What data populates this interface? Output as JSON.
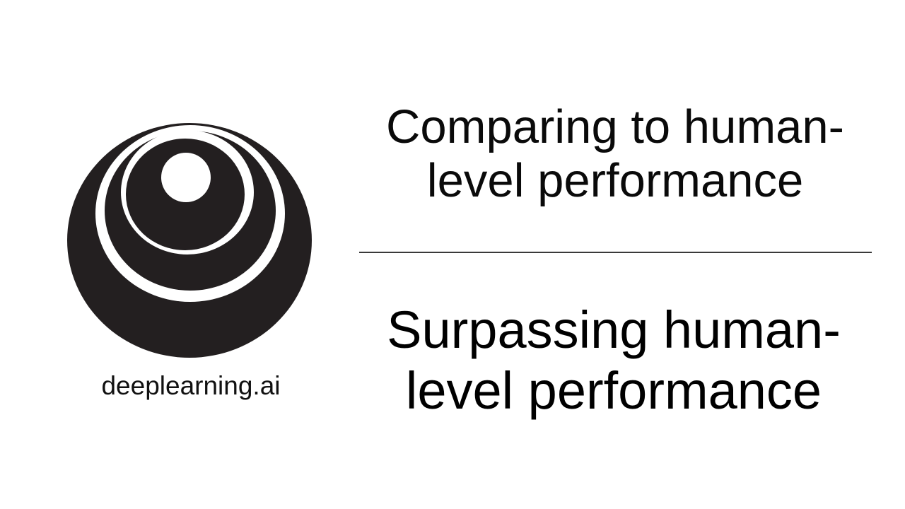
{
  "logo": {
    "name": "deeplearning-ai-logo",
    "brand_text": "deeplearning.ai",
    "fill_color": "#231f20",
    "background_color": "#ffffff"
  },
  "titles": {
    "current": "Comparing to human-\nlevel performance",
    "section": "Surpassing human-\nlevel performance"
  },
  "colors": {
    "text": "#000000",
    "divider": "#3a3a3a"
  }
}
